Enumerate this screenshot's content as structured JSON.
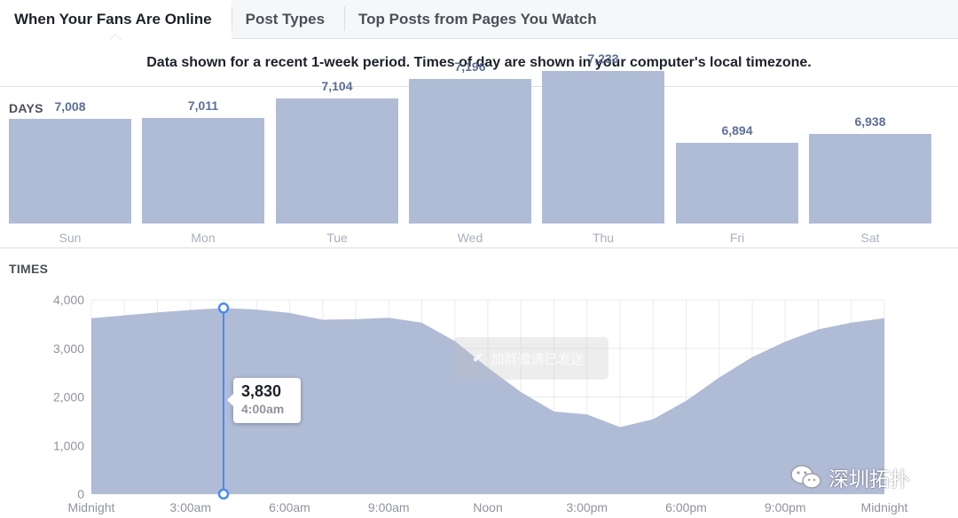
{
  "tabs": [
    {
      "label": "When Your Fans Are Online",
      "active": true
    },
    {
      "label": "Post Types",
      "active": false
    },
    {
      "label": "Top Posts from Pages You Watch",
      "active": false
    }
  ],
  "notice": "Data shown for a recent 1-week period. Times of day are shown in your computer's local timezone.",
  "days_section": {
    "label": "DAYS",
    "items": [
      {
        "day": "Sun",
        "value": 7008,
        "value_text": "7,008"
      },
      {
        "day": "Mon",
        "value": 7011,
        "value_text": "7,011"
      },
      {
        "day": "Tue",
        "value": 7104,
        "value_text": "7,104"
      },
      {
        "day": "Wed",
        "value": 7196,
        "value_text": "7,196"
      },
      {
        "day": "Thu",
        "value": 7233,
        "value_text": "7,233"
      },
      {
        "day": "Fri",
        "value": 6894,
        "value_text": "6,894"
      },
      {
        "day": "Sat",
        "value": 6938,
        "value_text": "6,938"
      }
    ]
  },
  "times_section": {
    "label": "TIMES"
  },
  "chart_data": {
    "type": "area",
    "x": [
      0,
      1,
      2,
      3,
      4,
      5,
      6,
      7,
      8,
      9,
      10,
      11,
      12,
      13,
      14,
      15,
      16,
      17,
      18,
      19,
      20,
      21,
      22,
      23,
      24
    ],
    "y_tick_labels": [
      "0",
      "1,000",
      "2,000",
      "3,000",
      "4,000"
    ],
    "x_tick_labels": [
      "Midnight",
      "3:00am",
      "6:00am",
      "9:00am",
      "Noon",
      "3:00pm",
      "6:00pm",
      "9:00pm",
      "Midnight"
    ],
    "x_tick_positions": [
      0,
      3,
      6,
      9,
      12,
      15,
      18,
      21,
      24
    ],
    "values": [
      3620,
      3680,
      3740,
      3790,
      3830,
      3800,
      3730,
      3590,
      3600,
      3630,
      3530,
      3150,
      2600,
      2100,
      1700,
      1640,
      1380,
      1540,
      1920,
      2400,
      2820,
      3140,
      3390,
      3530,
      3620
    ],
    "ylim": [
      0,
      4000
    ],
    "xlim": [
      0,
      24
    ],
    "grid": true,
    "highlight": {
      "x": 4,
      "value_text": "3,830",
      "time_text": "4:00am"
    },
    "colors": {
      "fill": "#b0bbd6",
      "marker": "#4a8af4",
      "grid": "#e9ebee"
    }
  },
  "overlay_toast": {
    "text": "加群邀请已发送"
  },
  "watermark": {
    "text": "深圳拓扑",
    "icon": "wechat-icon"
  }
}
